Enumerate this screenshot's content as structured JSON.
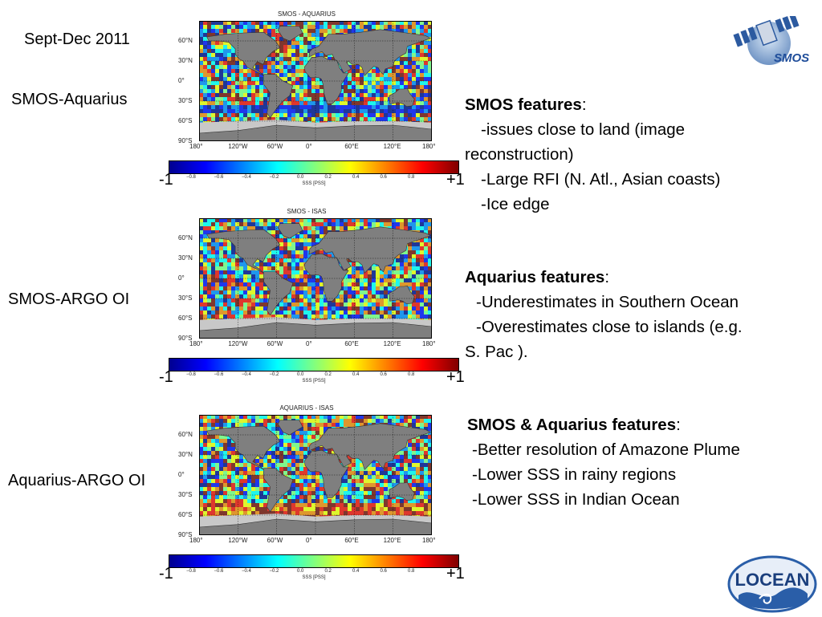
{
  "period_label": "Sept-Dec 2011",
  "panels": [
    {
      "row_label": "SMOS-Aquarius",
      "map_title": "SMOS - AQUARIUS",
      "colorbar_label": "SSS [PSS]",
      "scale_min_label": "-1",
      "scale_max_label": "+1"
    },
    {
      "row_label": "SMOS-ARGO OI",
      "map_title": "SMOS - ISAS",
      "colorbar_label": "SSS [PSS]",
      "scale_min_label": "-1",
      "scale_max_label": "+1"
    },
    {
      "row_label": "Aquarius-ARGO OI",
      "map_title": "AQUARIUS - ISAS",
      "colorbar_label": "SSS [PSS]",
      "scale_min_label": "-1",
      "scale_max_label": "+1"
    }
  ],
  "lat_ticks": [
    "60°N",
    "30°N",
    "0°",
    "30°S",
    "60°S",
    "90°S"
  ],
  "lon_ticks": [
    "180°",
    "120°W",
    "60°W",
    "0°",
    "60°E",
    "120°E",
    "180°"
  ],
  "colorbar_ticks": [
    "−0.8",
    "−0.6",
    "−0.4",
    "−0.2",
    "0.0",
    "0.2",
    "0.4",
    "0.6",
    "0.8"
  ],
  "colors": {
    "land": "#7f7f7f",
    "ice": "#c8c8c8",
    "ocean_neutral": "#7cdcb4",
    "colormap": [
      "#00008f",
      "#0000ff",
      "#0080ff",
      "#00ffff",
      "#80ff80",
      "#ffff00",
      "#ff8000",
      "#ff0000",
      "#800000"
    ]
  },
  "smos_features": {
    "heading": "SMOS features",
    "items": [
      "-issues close to land (image",
      "reconstruction)",
      "-Large RFI (N. Atl., Asian coasts)",
      "-Ice edge"
    ]
  },
  "aquarius_features": {
    "heading": "Aquarius features",
    "items": [
      "-Underestimates in Southern Ocean",
      "-Overestimates close to islands (e.g.",
      "S. Pac )."
    ]
  },
  "both_features": {
    "heading": "SMOS & Aquarius features",
    "items": [
      "-Better resolution of Amazone Plume",
      "-Lower SSS in rainy regions",
      "-Lower SSS in Indian Ocean"
    ]
  },
  "logos": {
    "smos_text": "SMOS",
    "locean_text": "LOCEAN"
  }
}
